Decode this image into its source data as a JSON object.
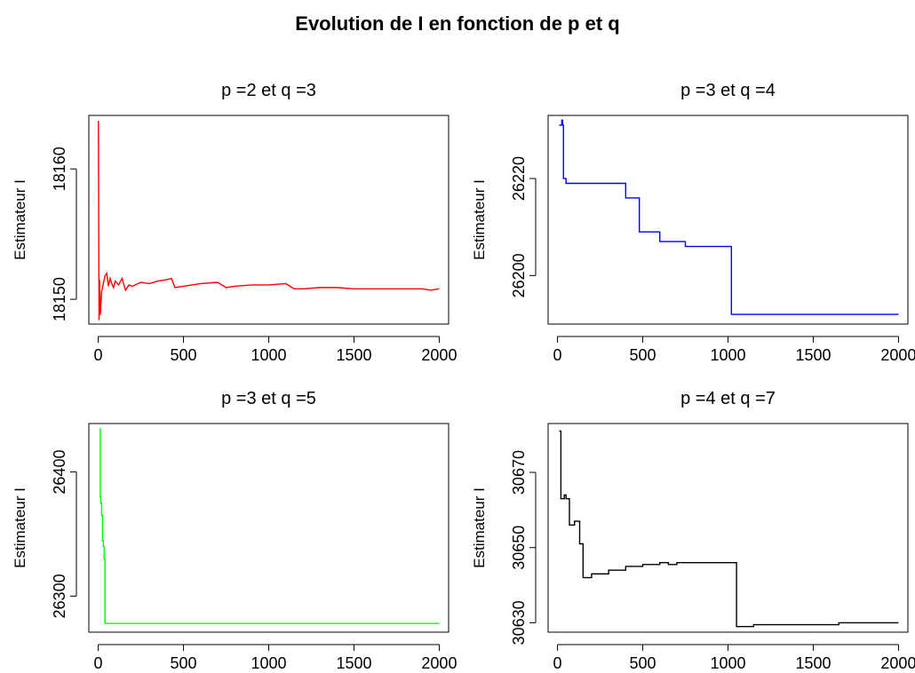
{
  "title": "Evolution de I en fonction de p et q",
  "chart_data": [
    {
      "type": "line",
      "title": "p =2 et q =3",
      "xlabel": "",
      "ylabel": "Estimateur I",
      "color": "#ff0000",
      "xlim": [
        -55,
        2055
      ],
      "ylim": [
        18148.1,
        18164.1
      ],
      "xticks": [
        0,
        500,
        1000,
        1500,
        2000
      ],
      "yticks": [
        18150,
        18160
      ],
      "step": false,
      "x": [
        1,
        5,
        8,
        12,
        20,
        30,
        40,
        50,
        60,
        70,
        80,
        90,
        100,
        120,
        140,
        160,
        180,
        200,
        250,
        300,
        350,
        400,
        430,
        450,
        500,
        600,
        700,
        750,
        800,
        900,
        1000,
        1100,
        1150,
        1200,
        1300,
        1400,
        1500,
        1600,
        1700,
        1800,
        1900,
        1950,
        2000
      ],
      "y": [
        18163.7,
        18148.4,
        18151.5,
        18148.8,
        18150.6,
        18151.2,
        18151.8,
        18152.0,
        18151.0,
        18151.6,
        18151.2,
        18150.9,
        18151.4,
        18151.1,
        18151.6,
        18150.7,
        18151.1,
        18151.0,
        18151.3,
        18151.2,
        18151.4,
        18151.5,
        18151.6,
        18150.9,
        18151.0,
        18151.2,
        18151.3,
        18150.9,
        18151.0,
        18151.1,
        18151.1,
        18151.2,
        18150.8,
        18150.8,
        18150.9,
        18150.9,
        18150.8,
        18150.8,
        18150.8,
        18150.8,
        18150.8,
        18150.7,
        18150.8
      ]
    },
    {
      "type": "line",
      "title": "p =3 et q =4",
      "xlabel": "",
      "ylabel": "Estimateur I",
      "color": "#0000ff",
      "xlim": [
        -55,
        2055
      ],
      "ylim": [
        26190,
        26233
      ],
      "xticks": [
        0,
        500,
        1000,
        1500,
        2000
      ],
      "yticks": [
        26200,
        26220
      ],
      "step": true,
      "x": [
        10,
        25,
        30,
        35,
        50,
        100,
        400,
        480,
        600,
        750,
        1020,
        2000
      ],
      "y": [
        26231,
        26232,
        26231,
        26220,
        26219,
        26219,
        26216,
        26209,
        26207,
        26206,
        26192,
        26192
      ],
      "x_end": 2000
    },
    {
      "type": "line",
      "title": "p =3 et q =5",
      "xlabel": "",
      "ylabel": "Estimateur I",
      "color": "#00ff00",
      "xlim": [
        -55,
        2055
      ],
      "ylim": [
        26271,
        26439
      ],
      "xticks": [
        0,
        500,
        1000,
        1500,
        2000
      ],
      "yticks": [
        26300,
        26400
      ],
      "step": true,
      "x": [
        10,
        12,
        15,
        20,
        25,
        30,
        35,
        40,
        2000
      ],
      "y": [
        26435,
        26380,
        26375,
        26365,
        26345,
        26340,
        26330,
        26278,
        26278
      ],
      "x_end": 2000
    },
    {
      "type": "line",
      "title": "p =4 et q =7",
      "xlabel": "",
      "ylabel": "Estimateur I",
      "color": "#000000",
      "xlim": [
        -55,
        2055
      ],
      "ylim": [
        30627.5,
        30683
      ],
      "xticks": [
        0,
        500,
        1000,
        1500,
        2000
      ],
      "yticks": [
        30630,
        30650,
        30670
      ],
      "step": true,
      "x": [
        10,
        20,
        40,
        50,
        70,
        100,
        130,
        150,
        200,
        300,
        400,
        500,
        600,
        650,
        700,
        800,
        900,
        1050,
        1100,
        1150,
        1300,
        1500,
        1650,
        2000
      ],
      "y": [
        30681,
        30663,
        30664,
        30663,
        30656,
        30657,
        30651,
        30642,
        30643,
        30644,
        30645,
        30645.5,
        30646,
        30645.5,
        30646,
        30646,
        30646,
        30629,
        30629,
        30629.5,
        30629.5,
        30629.5,
        30630,
        30630
      ],
      "x_end": 2000
    }
  ]
}
